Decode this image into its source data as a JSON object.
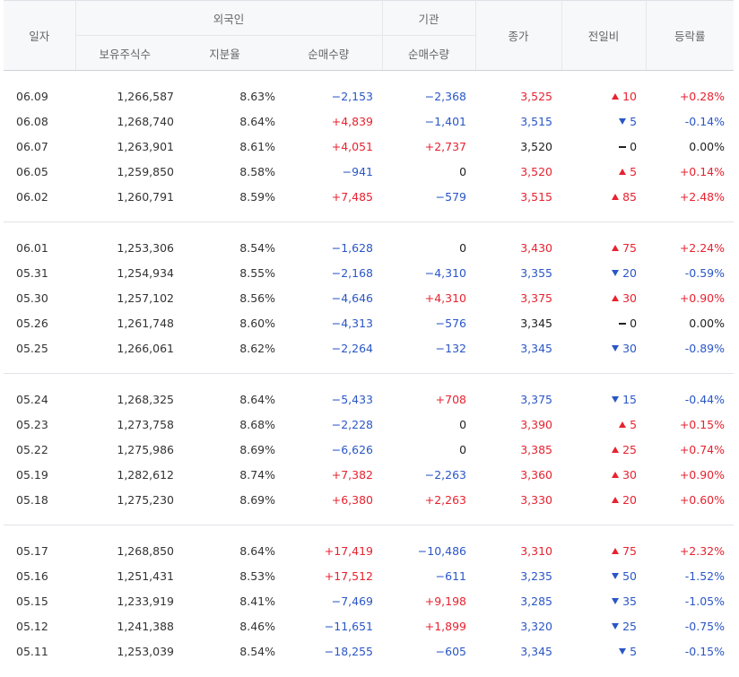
{
  "header": {
    "date": "일자",
    "foreign": "외국인",
    "institution": "기관",
    "close": "종가",
    "change": "전일비",
    "rate": "등락률",
    "holdings": "보유주식수",
    "share": "지분율",
    "foreign_net": "순매수량",
    "inst_net": "순매수량"
  },
  "colors": {
    "up": "#e8222f",
    "down": "#2a56c6"
  },
  "groups": [
    [
      {
        "date": "06.09",
        "holdings": "1,266,587",
        "share": "8.63%",
        "fnet": "−2,153",
        "fdir": "down",
        "inet": "−2,368",
        "idir": "down",
        "close": "3,525",
        "cdir": "up",
        "chg": "10",
        "rate": "+0.28%"
      },
      {
        "date": "06.08",
        "holdings": "1,268,740",
        "share": "8.64%",
        "fnet": "+4,839",
        "fdir": "up",
        "inet": "−1,401",
        "idir": "down",
        "close": "3,515",
        "cdir": "down",
        "chg": "5",
        "rate": "-0.14%"
      },
      {
        "date": "06.07",
        "holdings": "1,263,901",
        "share": "8.61%",
        "fnet": "+4,051",
        "fdir": "up",
        "inet": "+2,737",
        "idir": "up",
        "close": "3,520",
        "cdir": "even",
        "chg": "0",
        "rate": "0.00%"
      },
      {
        "date": "06.05",
        "holdings": "1,259,850",
        "share": "8.58%",
        "fnet": "−941",
        "fdir": "down",
        "inet": "0",
        "idir": "even",
        "close": "3,520",
        "cdir": "up",
        "chg": "5",
        "rate": "+0.14%"
      },
      {
        "date": "06.02",
        "holdings": "1,260,791",
        "share": "8.59%",
        "fnet": "+7,485",
        "fdir": "up",
        "inet": "−579",
        "idir": "down",
        "close": "3,515",
        "cdir": "up",
        "chg": "85",
        "rate": "+2.48%"
      }
    ],
    [
      {
        "date": "06.01",
        "holdings": "1,253,306",
        "share": "8.54%",
        "fnet": "−1,628",
        "fdir": "down",
        "inet": "0",
        "idir": "even",
        "close": "3,430",
        "cdir": "up",
        "chg": "75",
        "rate": "+2.24%"
      },
      {
        "date": "05.31",
        "holdings": "1,254,934",
        "share": "8.55%",
        "fnet": "−2,168",
        "fdir": "down",
        "inet": "−4,310",
        "idir": "down",
        "close": "3,355",
        "cdir": "down",
        "chg": "20",
        "rate": "-0.59%"
      },
      {
        "date": "05.30",
        "holdings": "1,257,102",
        "share": "8.56%",
        "fnet": "−4,646",
        "fdir": "down",
        "inet": "+4,310",
        "idir": "up",
        "close": "3,375",
        "cdir": "up",
        "chg": "30",
        "rate": "+0.90%"
      },
      {
        "date": "05.26",
        "holdings": "1,261,748",
        "share": "8.60%",
        "fnet": "−4,313",
        "fdir": "down",
        "inet": "−576",
        "idir": "down",
        "close": "3,345",
        "cdir": "even",
        "chg": "0",
        "rate": "0.00%"
      },
      {
        "date": "05.25",
        "holdings": "1,266,061",
        "share": "8.62%",
        "fnet": "−2,264",
        "fdir": "down",
        "inet": "−132",
        "idir": "down",
        "close": "3,345",
        "cdir": "down",
        "chg": "30",
        "rate": "-0.89%"
      }
    ],
    [
      {
        "date": "05.24",
        "holdings": "1,268,325",
        "share": "8.64%",
        "fnet": "−5,433",
        "fdir": "down",
        "inet": "+708",
        "idir": "up",
        "close": "3,375",
        "cdir": "down",
        "chg": "15",
        "rate": "-0.44%"
      },
      {
        "date": "05.23",
        "holdings": "1,273,758",
        "share": "8.68%",
        "fnet": "−2,228",
        "fdir": "down",
        "inet": "0",
        "idir": "even",
        "close": "3,390",
        "cdir": "up",
        "chg": "5",
        "rate": "+0.15%"
      },
      {
        "date": "05.22",
        "holdings": "1,275,986",
        "share": "8.69%",
        "fnet": "−6,626",
        "fdir": "down",
        "inet": "0",
        "idir": "even",
        "close": "3,385",
        "cdir": "up",
        "chg": "25",
        "rate": "+0.74%"
      },
      {
        "date": "05.19",
        "holdings": "1,282,612",
        "share": "8.74%",
        "fnet": "+7,382",
        "fdir": "up",
        "inet": "−2,263",
        "idir": "down",
        "close": "3,360",
        "cdir": "up",
        "chg": "30",
        "rate": "+0.90%"
      },
      {
        "date": "05.18",
        "holdings": "1,275,230",
        "share": "8.69%",
        "fnet": "+6,380",
        "fdir": "up",
        "inet": "+2,263",
        "idir": "up",
        "close": "3,330",
        "cdir": "up",
        "chg": "20",
        "rate": "+0.60%"
      }
    ],
    [
      {
        "date": "05.17",
        "holdings": "1,268,850",
        "share": "8.64%",
        "fnet": "+17,419",
        "fdir": "up",
        "inet": "−10,486",
        "idir": "down",
        "close": "3,310",
        "cdir": "up",
        "chg": "75",
        "rate": "+2.32%"
      },
      {
        "date": "05.16",
        "holdings": "1,251,431",
        "share": "8.53%",
        "fnet": "+17,512",
        "fdir": "up",
        "inet": "−611",
        "idir": "down",
        "close": "3,235",
        "cdir": "down",
        "chg": "50",
        "rate": "-1.52%"
      },
      {
        "date": "05.15",
        "holdings": "1,233,919",
        "share": "8.41%",
        "fnet": "−7,469",
        "fdir": "down",
        "inet": "+9,198",
        "idir": "up",
        "close": "3,285",
        "cdir": "down",
        "chg": "35",
        "rate": "-1.05%"
      },
      {
        "date": "05.12",
        "holdings": "1,241,388",
        "share": "8.46%",
        "fnet": "−11,651",
        "fdir": "down",
        "inet": "+1,899",
        "idir": "up",
        "close": "3,320",
        "cdir": "down",
        "chg": "25",
        "rate": "-0.75%"
      },
      {
        "date": "05.11",
        "holdings": "1,253,039",
        "share": "8.54%",
        "fnet": "−18,255",
        "fdir": "down",
        "inet": "−605",
        "idir": "down",
        "close": "3,345",
        "cdir": "down",
        "chg": "5",
        "rate": "-0.15%"
      }
    ]
  ]
}
